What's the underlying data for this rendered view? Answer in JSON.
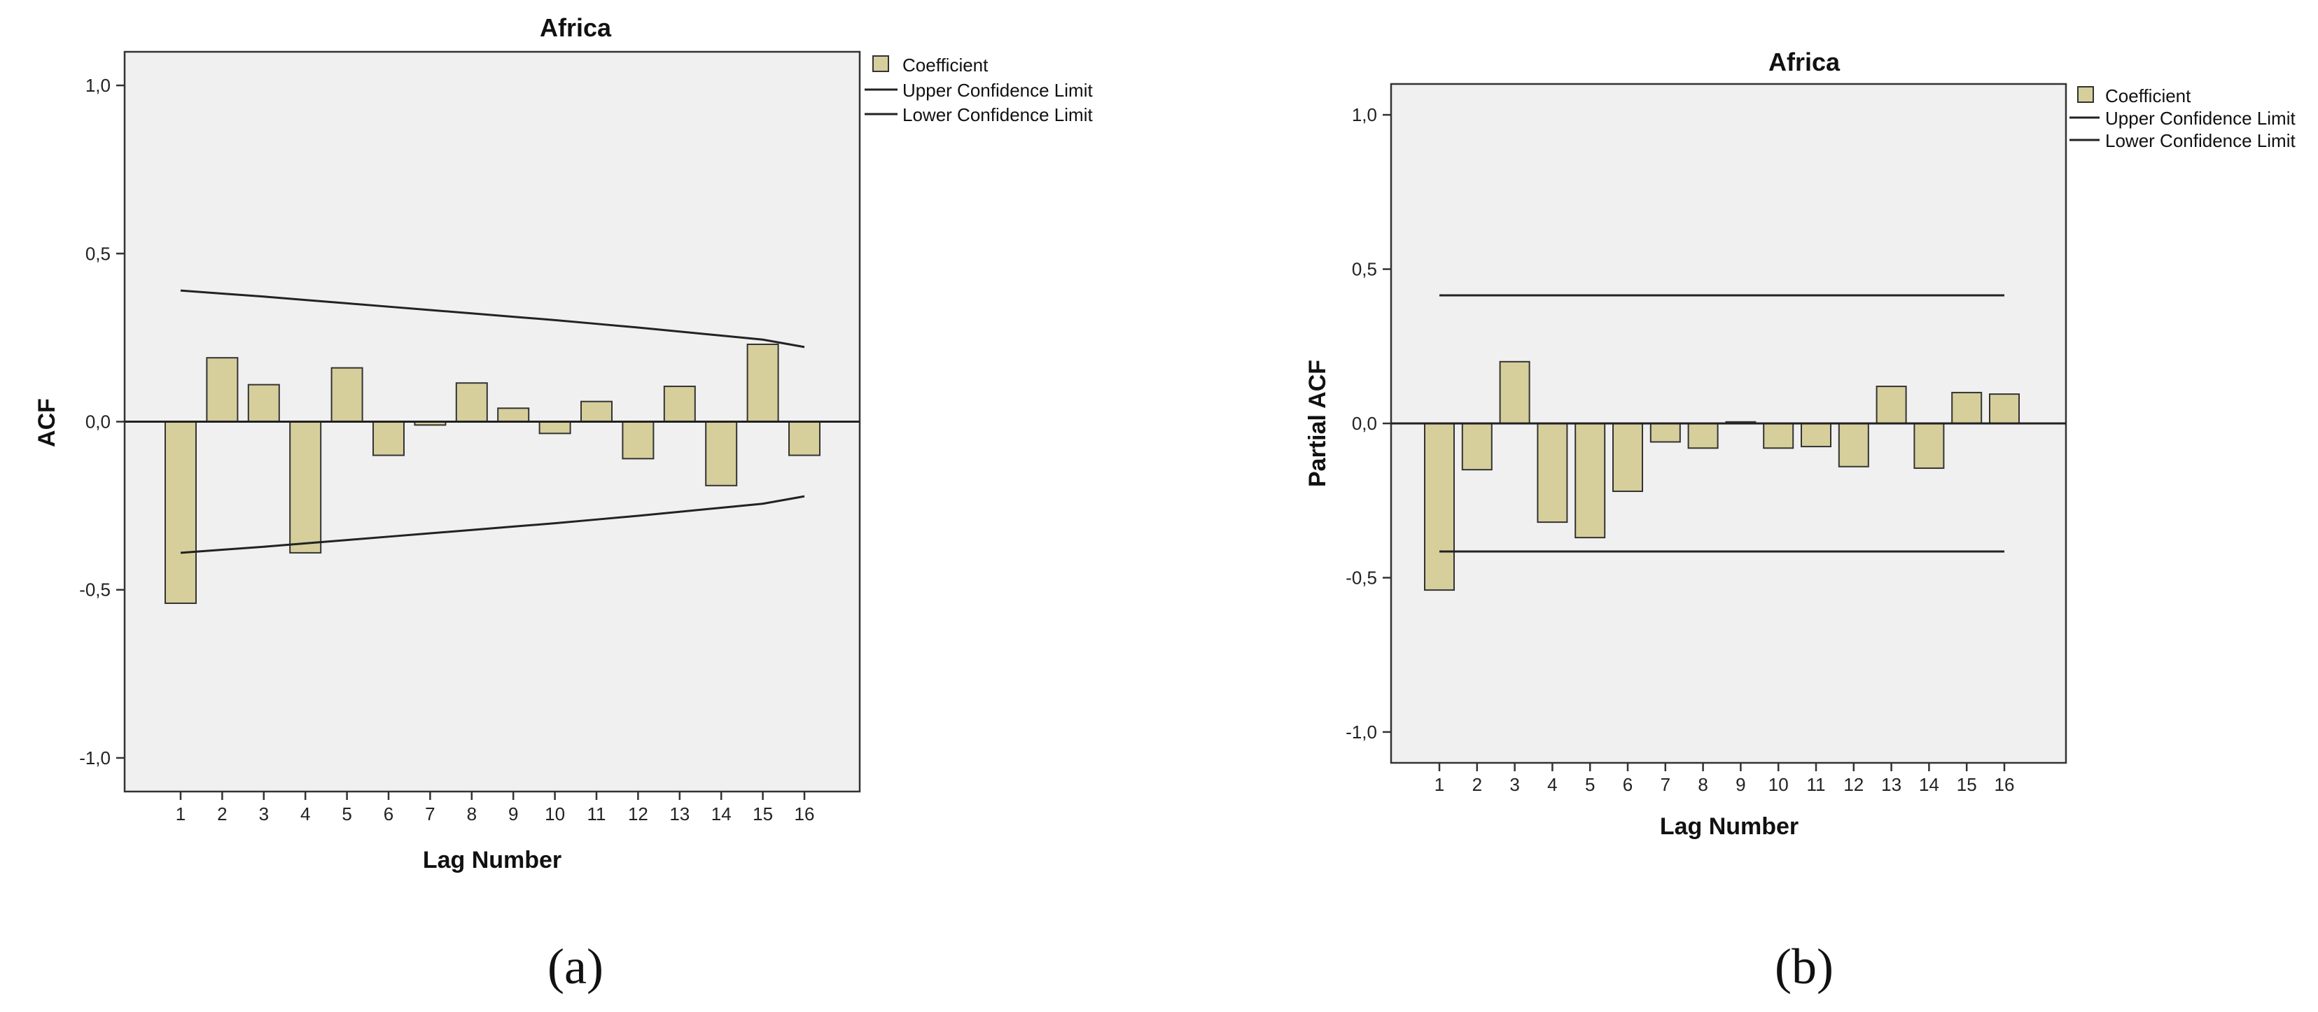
{
  "colors": {
    "bar_fill": "#d6cf9c",
    "bar_stroke": "#333333",
    "plot_bg": "#f0f0f0",
    "line": "#222222"
  },
  "chart_data": [
    {
      "type": "bar",
      "panel": "a",
      "title": "Africa",
      "xlabel": "Lag Number",
      "ylabel": "ACF",
      "ylim": [
        -1.1,
        1.1
      ],
      "yticks": [
        1.0,
        0.5,
        0.0,
        -0.5,
        -1.0
      ],
      "ytick_labels": [
        "1,0",
        "0,5",
        "0,0",
        "-0,5",
        "-1,0"
      ],
      "categories": [
        "1",
        "2",
        "3",
        "4",
        "5",
        "6",
        "7",
        "8",
        "9",
        "10",
        "11",
        "12",
        "13",
        "14",
        "15",
        "16"
      ],
      "series": [
        {
          "name": "Coefficient",
          "values": [
            -0.54,
            0.19,
            0.11,
            -0.39,
            0.16,
            -0.1,
            -0.01,
            0.115,
            0.04,
            -0.035,
            0.06,
            -0.11,
            0.105,
            -0.19,
            0.23,
            -0.1
          ]
        },
        {
          "name": "Upper Confidence Limit",
          "values": [
            0.39,
            0.381,
            0.372,
            0.362,
            0.352,
            0.342,
            0.332,
            0.322,
            0.312,
            0.302,
            0.291,
            0.28,
            0.268,
            0.256,
            0.244,
            0.222
          ]
        },
        {
          "name": "Lower Confidence Limit",
          "values": [
            -0.39,
            -0.381,
            -0.372,
            -0.362,
            -0.352,
            -0.342,
            -0.332,
            -0.322,
            -0.312,
            -0.302,
            -0.291,
            -0.28,
            -0.268,
            -0.256,
            -0.244,
            -0.222
          ]
        }
      ],
      "legend": [
        "Coefficient",
        "Upper Confidence Limit",
        "Lower Confidence Limit"
      ],
      "legend_position": "top-right",
      "grid": false,
      "caption": "(a)"
    },
    {
      "type": "bar",
      "panel": "b",
      "title": "Africa",
      "xlabel": "Lag Number",
      "ylabel": "Partial ACF",
      "ylim": [
        -1.1,
        1.1
      ],
      "yticks": [
        1.0,
        0.5,
        0.0,
        -0.5,
        -1.0
      ],
      "ytick_labels": [
        "1,0",
        "0,5",
        "0,0",
        "-0,5",
        "-1,0"
      ],
      "categories": [
        "1",
        "2",
        "3",
        "4",
        "5",
        "6",
        "7",
        "8",
        "9",
        "10",
        "11",
        "12",
        "13",
        "14",
        "15",
        "16"
      ],
      "series": [
        {
          "name": "Coefficient",
          "values": [
            -0.54,
            -0.15,
            0.2,
            -0.32,
            -0.37,
            -0.22,
            -0.06,
            -0.08,
            0.005,
            -0.08,
            -0.075,
            -0.14,
            0.12,
            -0.145,
            0.1,
            0.095
          ]
        },
        {
          "name": "Upper Confidence Limit",
          "values": [
            0.415,
            0.415,
            0.415,
            0.415,
            0.415,
            0.415,
            0.415,
            0.415,
            0.415,
            0.415,
            0.415,
            0.415,
            0.415,
            0.415,
            0.415,
            0.415
          ]
        },
        {
          "name": "Lower Confidence Limit",
          "values": [
            -0.415,
            -0.415,
            -0.415,
            -0.415,
            -0.415,
            -0.415,
            -0.415,
            -0.415,
            -0.415,
            -0.415,
            -0.415,
            -0.415,
            -0.415,
            -0.415,
            -0.415,
            -0.415
          ]
        }
      ],
      "legend": [
        "Coefficient",
        "Upper Confidence Limit",
        "Lower Confidence Limit"
      ],
      "legend_position": "top-right",
      "grid": false,
      "caption": "(b)"
    }
  ]
}
